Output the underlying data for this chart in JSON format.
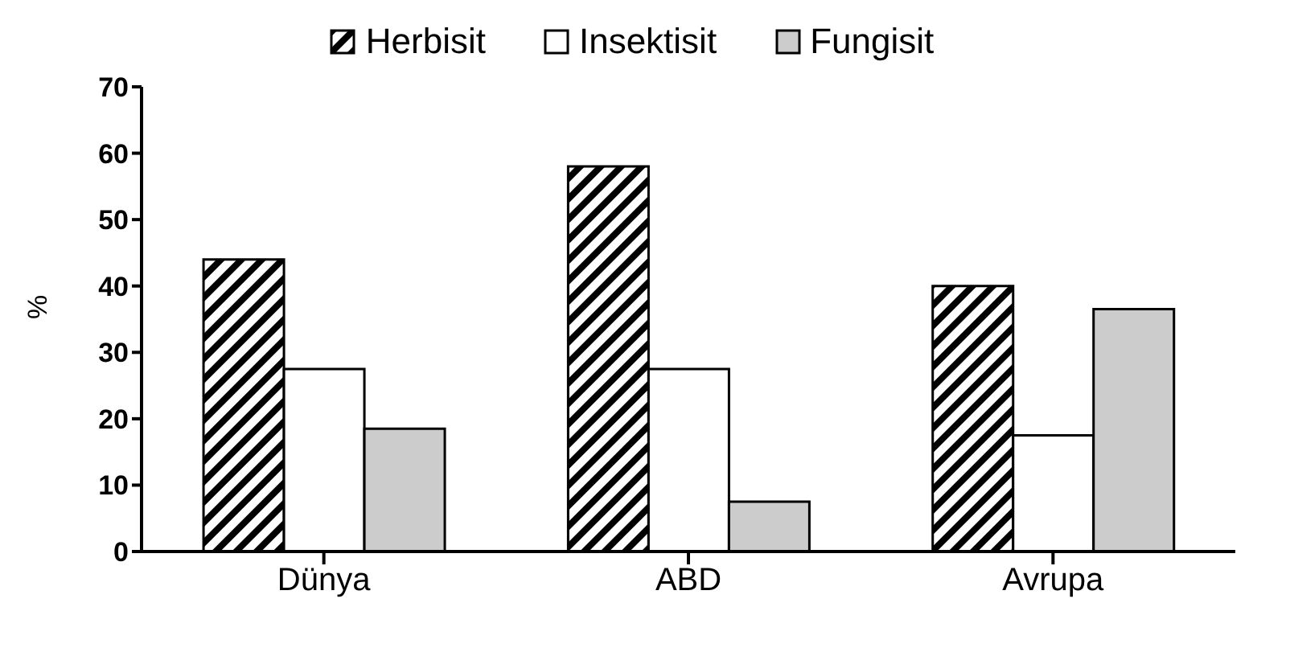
{
  "chart_data": {
    "type": "bar",
    "ylabel": "%",
    "categories": [
      "Dünya",
      "ABD",
      "Avrupa"
    ],
    "series": [
      {
        "name": "Herbisit",
        "color": "#000000",
        "values": [
          44,
          58,
          40
        ]
      },
      {
        "name": "Insektisit",
        "color": "#ffffff",
        "values": [
          27.5,
          27.5,
          17.5
        ]
      },
      {
        "name": "Fungisit",
        "color": "#cccccc",
        "values": [
          18.5,
          7.5,
          36.5
        ]
      }
    ],
    "ylim": [
      0,
      70
    ],
    "yticks": [
      0,
      10,
      20,
      30,
      40,
      50,
      60,
      70
    ],
    "grid": false,
    "legend": "top"
  }
}
